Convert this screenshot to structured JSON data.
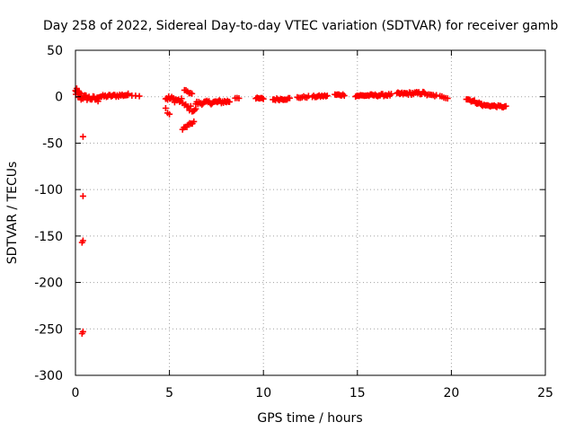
{
  "chart_data": {
    "type": "scatter",
    "title": "Day 258 of 2022, Sidereal Day-to-day VTEC variation (SDTVAR) for receiver gamb",
    "xlabel": "GPS time / hours",
    "ylabel": "SDTVAR / TECUs",
    "xlim": [
      0,
      25
    ],
    "ylim": [
      -300,
      50
    ],
    "xticks": [
      0,
      5,
      10,
      15,
      20,
      25
    ],
    "yticks": [
      50,
      0,
      -50,
      -100,
      -150,
      -200,
      -250,
      -300
    ],
    "xtick_labels": [
      "0",
      "5",
      "10",
      "15",
      "20",
      "25"
    ],
    "ytick_labels": [
      "50",
      "0",
      "-50",
      "-100",
      "-150",
      "-200",
      "-250",
      "-300"
    ],
    "grid": true,
    "marker": "+",
    "series_color": "#ff0000",
    "segments": [
      {
        "x0": 0.0,
        "x1": 0.3,
        "y0": 5,
        "y1": 0,
        "spread": 5,
        "n": 14
      },
      {
        "x0": 0.3,
        "x1": 1.2,
        "y0": 0,
        "y1": -3,
        "spread": 3,
        "n": 18
      },
      {
        "x0": 1.2,
        "x1": 2.8,
        "y0": 0,
        "y1": 2,
        "spread": 1.5,
        "n": 26
      },
      {
        "x0": 2.8,
        "x1": 3.4,
        "y0": 2,
        "y1": 1,
        "spread": 0.5,
        "n": 4
      },
      {
        "x0": 4.8,
        "x1": 5.0,
        "y0": -13,
        "y1": -18,
        "spread": 2,
        "n": 3
      },
      {
        "x0": 4.8,
        "x1": 5.7,
        "y0": -1,
        "y1": -5,
        "spread": 3,
        "n": 18
      },
      {
        "x0": 5.8,
        "x1": 6.2,
        "y0": 7,
        "y1": 3,
        "spread": 1,
        "n": 6
      },
      {
        "x0": 5.7,
        "x1": 6.3,
        "y0": -35,
        "y1": -27,
        "spread": 1.5,
        "n": 9
      },
      {
        "x0": 5.8,
        "x1": 6.4,
        "y0": -10,
        "y1": -15,
        "spread": 3,
        "n": 10
      },
      {
        "x0": 6.4,
        "x1": 8.2,
        "y0": -7,
        "y1": -5,
        "spread": 2,
        "n": 34
      },
      {
        "x0": 8.5,
        "x1": 8.7,
        "y0": -1,
        "y1": -1,
        "spread": 1,
        "n": 3
      },
      {
        "x0": 9.6,
        "x1": 10.0,
        "y0": -2,
        "y1": -2,
        "spread": 1,
        "n": 7
      },
      {
        "x0": 10.5,
        "x1": 11.4,
        "y0": -3,
        "y1": -2,
        "spread": 1.2,
        "n": 14
      },
      {
        "x0": 11.8,
        "x1": 12.4,
        "y0": -1,
        "y1": 0,
        "spread": 1,
        "n": 8
      },
      {
        "x0": 12.6,
        "x1": 13.4,
        "y0": 0,
        "y1": 1,
        "spread": 1,
        "n": 12
      },
      {
        "x0": 13.8,
        "x1": 14.3,
        "y0": 2,
        "y1": 2,
        "spread": 1,
        "n": 8
      },
      {
        "x0": 14.9,
        "x1": 16.8,
        "y0": 1,
        "y1": 2,
        "spread": 1.2,
        "n": 30
      },
      {
        "x0": 17.1,
        "x1": 18.6,
        "y0": 3,
        "y1": 4,
        "spread": 1.5,
        "n": 28
      },
      {
        "x0": 18.7,
        "x1": 19.2,
        "y0": 2,
        "y1": 1,
        "spread": 1,
        "n": 7
      },
      {
        "x0": 19.4,
        "x1": 19.8,
        "y0": 0,
        "y1": -1,
        "spread": 1,
        "n": 5
      },
      {
        "x0": 20.8,
        "x1": 21.6,
        "y0": -2,
        "y1": -8,
        "spread": 1.5,
        "n": 14
      },
      {
        "x0": 21.6,
        "x1": 22.9,
        "y0": -9,
        "y1": -11,
        "spread": 1,
        "n": 20
      }
    ],
    "outliers": [
      {
        "x": 0.4,
        "y": -43
      },
      {
        "x": 0.4,
        "y": -107
      },
      {
        "x": 0.4,
        "y": -155
      },
      {
        "x": 0.35,
        "y": -157
      },
      {
        "x": 0.4,
        "y": -253
      },
      {
        "x": 0.35,
        "y": -255
      }
    ]
  }
}
